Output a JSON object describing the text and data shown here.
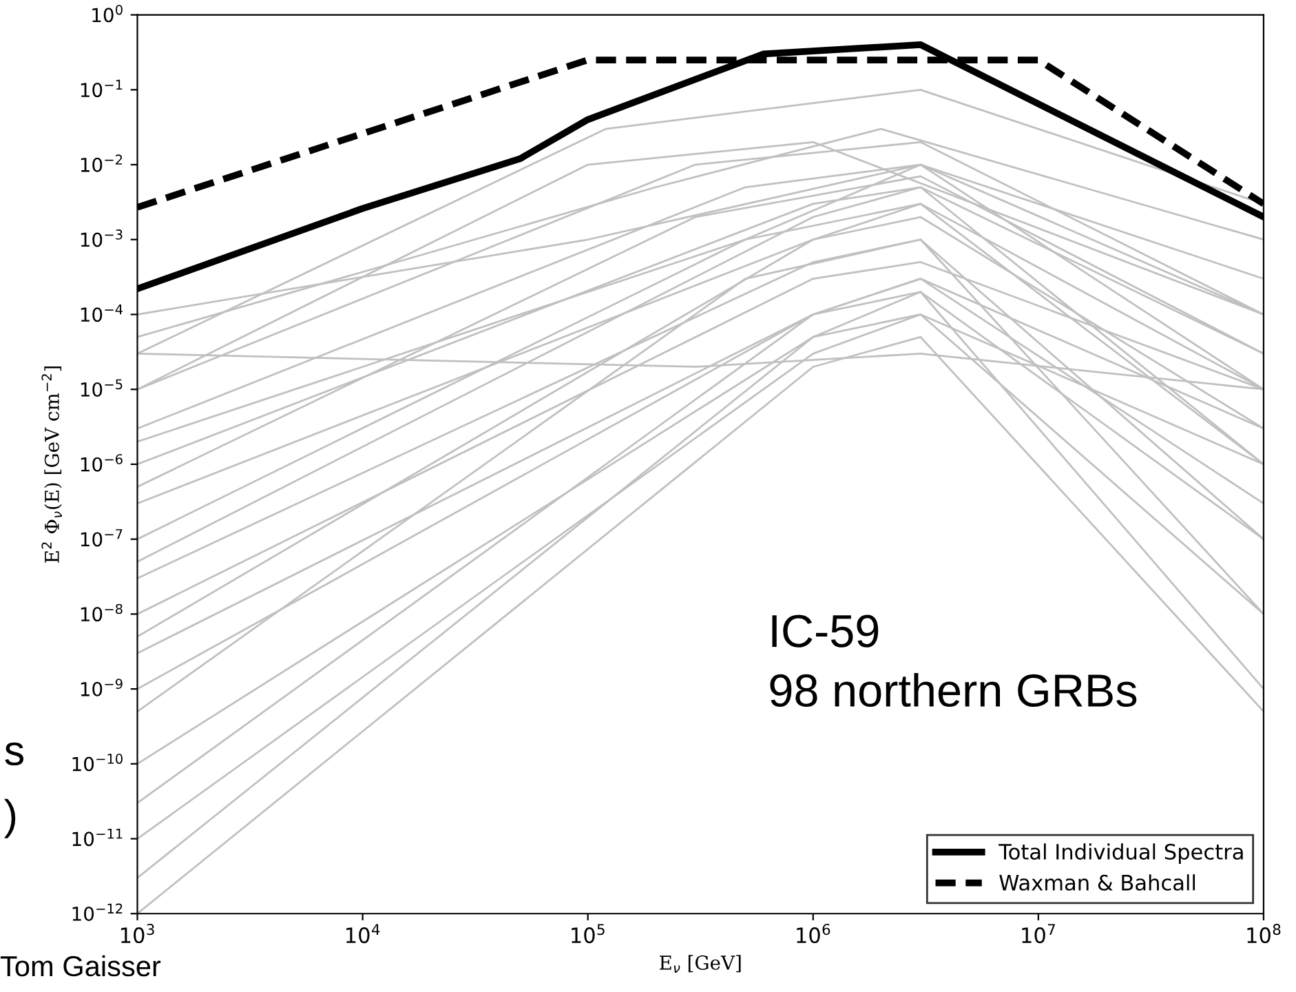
{
  "chart_data": {
    "type": "line",
    "xlabel": "E$_{ν}$ [GeV]",
    "ylabel": "E$^{2}$ Φ$_{ν}$(E) [GeV cm$^{−2}$]",
    "log": "xy",
    "grid": false,
    "legend": "bottom right",
    "xlim": [
      1000,
      100000000
    ],
    "ylim": [
      1e-12,
      1
    ],
    "xticks": [
      {
        "value": 1000,
        "label": "10$^{3}$"
      },
      {
        "value": 10000,
        "label": "10$^{4}$"
      },
      {
        "value": 100000,
        "label": "10$^{5}$"
      },
      {
        "value": 1000000,
        "label": "10$^{6}$"
      },
      {
        "value": 10000000,
        "label": "10$^{7}$"
      },
      {
        "value": 100000000,
        "label": "10$^{8}$"
      }
    ],
    "yticks": [
      {
        "value": 1e-12,
        "label": "10$^{−12}$"
      },
      {
        "value": 1e-11,
        "label": "10$^{−11}$"
      },
      {
        "value": 1e-10,
        "label": "10$^{−10}$"
      },
      {
        "value": 1e-09,
        "label": "10$^{−9}$"
      },
      {
        "value": 1e-08,
        "label": "10$^{−8}$"
      },
      {
        "value": 1e-07,
        "label": "10$^{−7}$"
      },
      {
        "value": 1e-06,
        "label": "10$^{−6}$"
      },
      {
        "value": 1e-05,
        "label": "10$^{−5}$"
      },
      {
        "value": 0.0001,
        "label": "10$^{−4}$"
      },
      {
        "value": 0.001,
        "label": "10$^{−3}$"
      },
      {
        "value": 0.01,
        "label": "10$^{−2}$"
      },
      {
        "value": 0.1,
        "label": "10$^{−1}$"
      },
      {
        "value": 1,
        "label": "10$^{0}$"
      }
    ],
    "annotations": [
      "IC-59\n98 northern GRBs",
      "Tom Gaisser",
      "s",
      ")"
    ],
    "series": [
      {
        "color": "#c0c0c0",
        "x": [
          1000,
          120000,
          3000000,
          100000000
        ],
        "values": [
          3e-05,
          0.03,
          0.1,
          0.003
        ]
      },
      {
        "color": "#c0c0c0",
        "x": [
          1000,
          300000,
          3000000,
          100000000
        ],
        "values": [
          1e-05,
          0.01,
          0.02,
          0.0001
        ]
      },
      {
        "color": "#c0c0c0",
        "x": [
          1000,
          500000,
          3000000,
          100000000
        ],
        "values": [
          3e-06,
          0.005,
          0.01,
          1e-05
        ]
      },
      {
        "color": "#c0c0c0",
        "x": [
          1000,
          1000000,
          3000000,
          100000000
        ],
        "values": [
          1e-06,
          0.003,
          0.005,
          1e-06
        ]
      },
      {
        "color": "#c0c0c0",
        "x": [
          1000,
          1000000,
          3000000,
          100000000
        ],
        "values": [
          3e-07,
          0.001,
          0.002,
          3e-06
        ]
      },
      {
        "color": "#c0c0c0",
        "x": [
          1000,
          500000,
          3000000,
          100000000
        ],
        "values": [
          1e-07,
          0.001,
          0.003,
          1e-05
        ]
      },
      {
        "color": "#c0c0c0",
        "x": [
          1000,
          1000000,
          3000000,
          100000000
        ],
        "values": [
          3e-08,
          0.0005,
          0.001,
          1e-07
        ]
      },
      {
        "color": "#c0c0c0",
        "x": [
          1000,
          1000000,
          3000000,
          100000000
        ],
        "values": [
          1e-08,
          0.0003,
          0.0005,
          1e-05
        ]
      },
      {
        "color": "#c0c0c0",
        "x": [
          1000,
          1000000,
          3000000,
          100000000
        ],
        "values": [
          3e-09,
          0.0001,
          0.0003,
          3e-06
        ]
      },
      {
        "color": "#c0c0c0",
        "x": [
          1000,
          1000000,
          3000000,
          100000000
        ],
        "values": [
          1e-09,
          0.0001,
          0.0002,
          1e-07
        ]
      },
      {
        "color": "#c0c0c0",
        "x": [
          1000,
          1000000,
          3000000,
          100000000
        ],
        "values": [
          1e-10,
          5e-05,
          0.0001,
          1e-08
        ]
      },
      {
        "color": "#c0c0c0",
        "x": [
          1000,
          1000000,
          3000000,
          100000000
        ],
        "values": [
          1e-11,
          3e-05,
          0.0001,
          1e-06
        ]
      },
      {
        "color": "#c0c0c0",
        "x": [
          1000,
          1000000,
          3000000,
          100000000
        ],
        "values": [
          1e-12,
          2e-05,
          5e-05,
          5e-10
        ]
      },
      {
        "color": "#c0c0c0",
        "x": [
          1000,
          300000,
          3000000,
          100000000
        ],
        "values": [
          3e-05,
          2e-05,
          3e-05,
          1e-05
        ]
      },
      {
        "color": "#c0c0c0",
        "x": [
          1000,
          100000,
          3000000,
          100000000
        ],
        "values": [
          0.0001,
          0.001,
          0.01,
          0.0001
        ]
      },
      {
        "color": "#c0c0c0",
        "x": [
          1000,
          200000,
          2000000,
          100000000
        ],
        "values": [
          5e-05,
          0.005,
          0.03,
          0.001
        ]
      },
      {
        "color": "#c0c0c0",
        "x": [
          1000,
          500000,
          3000000,
          100000000
        ],
        "values": [
          2e-06,
          0.001,
          0.01,
          0.0003
        ]
      },
      {
        "color": "#c0c0c0",
        "x": [
          1000,
          1000000,
          3000000,
          100000000
        ],
        "values": [
          5e-08,
          0.002,
          0.005,
          3e-05
        ]
      },
      {
        "color": "#c0c0c0",
        "x": [
          1000,
          1000000,
          3000000,
          100000000
        ],
        "values": [
          5e-09,
          0.001,
          0.003,
          1e-06
        ]
      },
      {
        "color": "#c0c0c0",
        "x": [
          1000,
          500000,
          3000000,
          100000000
        ],
        "values": [
          5e-10,
          0.0003,
          0.001,
          1e-08
        ]
      },
      {
        "color": "#c0c0c0",
        "x": [
          1000,
          1000000,
          3000000,
          100000000
        ],
        "values": [
          3e-11,
          0.0001,
          0.0003,
          3e-07
        ]
      },
      {
        "color": "#c0c0c0",
        "x": [
          1000,
          1000000,
          3000000,
          100000000
        ],
        "values": [
          3e-12,
          5e-05,
          0.0002,
          1e-09
        ]
      },
      {
        "color": "#c0c0c0",
        "x": [
          1000,
          100000,
          1000000,
          100000000
        ],
        "values": [
          1e-05,
          0.01,
          0.02,
          0.0001
        ]
      },
      {
        "color": "#c0c0c0",
        "x": [
          1000,
          300000,
          3000000,
          100000000
        ],
        "values": [
          5e-07,
          0.002,
          0.007,
          3e-05
        ]
      },
      {
        "name": "Total Individual Spectra",
        "color": "#000000",
        "line_style": "solid",
        "x": [
          1000,
          10000,
          50000,
          100000,
          600000,
          3000000,
          100000000
        ],
        "values": [
          0.00022,
          0.0026,
          0.012,
          0.04,
          0.3,
          0.4,
          0.002
        ]
      },
      {
        "name": "Waxman & Bahcall",
        "color": "#000000",
        "line_style": "dashed",
        "x": [
          1000,
          100000,
          10000000,
          100000000
        ],
        "values": [
          0.0027,
          0.25,
          0.25,
          0.003
        ]
      }
    ]
  }
}
